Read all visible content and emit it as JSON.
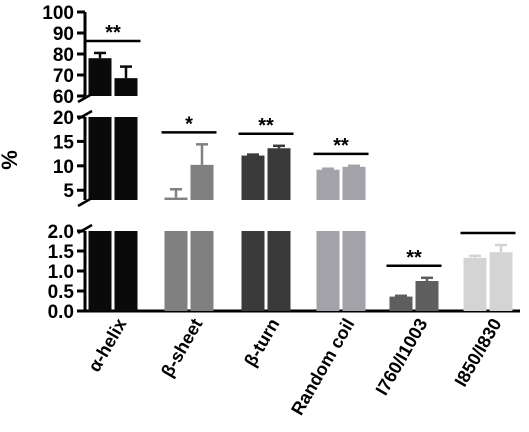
{
  "chart_data": {
    "type": "bar",
    "ylabel": "%",
    "broken_y_axis": true,
    "segments": [
      {
        "range": [
          0,
          2.0
        ],
        "ticks": [
          "0.0",
          "0.5",
          "1.0",
          "1.5",
          "2.0"
        ],
        "tick_values": [
          0,
          0.5,
          1.0,
          1.5,
          2.0
        ]
      },
      {
        "range": [
          3,
          20
        ],
        "ticks": [
          "5",
          "10",
          "15",
          "20"
        ],
        "tick_values": [
          5,
          10,
          15,
          20
        ]
      },
      {
        "range": [
          60,
          100
        ],
        "ticks": [
          "60",
          "70",
          "80",
          "90",
          "100"
        ],
        "tick_values": [
          60,
          70,
          80,
          90,
          100
        ]
      }
    ],
    "groups": [
      {
        "label": "α-helix",
        "values": [
          78.0,
          68.5
        ],
        "errors": [
          2.5,
          5.5
        ],
        "colors": [
          "#0a0a0a",
          "#0a0a0a"
        ],
        "sig": "**"
      },
      {
        "label": "β-sheet",
        "values": [
          3.5,
          10.2
        ],
        "errors": [
          1.7,
          4.2
        ],
        "colors": [
          "#808080",
          "#808080"
        ],
        "sig": "*"
      },
      {
        "label": "β-turn",
        "values": [
          12.1,
          13.6
        ],
        "errors": [
          0.2,
          0.5
        ],
        "colors": [
          "#3a3a3a",
          "#3a3a3a"
        ],
        "sig": "**"
      },
      {
        "label": "Random coil",
        "values": [
          9.2,
          9.8
        ],
        "errors": [
          0.2,
          0.2
        ],
        "colors": [
          "#a2a2a8",
          "#a2a2a8"
        ],
        "sig": "**"
      },
      {
        "label": "I760/I1003",
        "values": [
          0.36,
          0.75
        ],
        "errors": [
          0.02,
          0.08
        ],
        "colors": [
          "#5e5e5e",
          "#5e5e5e"
        ],
        "sig": "**"
      },
      {
        "label": "I850/I830",
        "values": [
          1.33,
          1.47
        ],
        "errors": [
          0.05,
          0.18
        ],
        "colors": [
          "#d4d4d4",
          "#d4d4d4"
        ],
        "sig": "*"
      }
    ]
  }
}
